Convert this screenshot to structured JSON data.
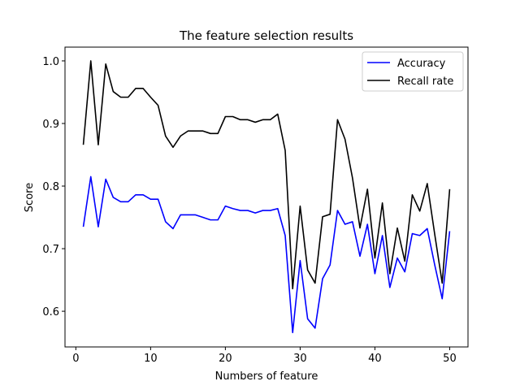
{
  "chart_data": {
    "type": "line",
    "title": "The feature selection results",
    "xlabel": "Numbers of feature",
    "ylabel": "Score",
    "xlim": [
      -1.45,
      52.45
    ],
    "ylim": [
      0.543,
      1.022
    ],
    "xticks": [
      0,
      10,
      20,
      30,
      40,
      50
    ],
    "yticks": [
      0.6,
      0.7,
      0.8,
      0.9,
      1.0
    ],
    "xtick_labels": [
      "0",
      "10",
      "20",
      "30",
      "40",
      "50"
    ],
    "ytick_labels": [
      "0.6",
      "0.7",
      "0.8",
      "0.9",
      "1.0"
    ],
    "grid": false,
    "legend_position": "top-right",
    "x": [
      1,
      2,
      3,
      4,
      5,
      6,
      7,
      8,
      9,
      10,
      11,
      12,
      13,
      14,
      15,
      16,
      17,
      18,
      19,
      20,
      21,
      22,
      23,
      24,
      25,
      26,
      27,
      28,
      29,
      30,
      31,
      32,
      33,
      34,
      35,
      36,
      37,
      38,
      39,
      40,
      41,
      42,
      43,
      44,
      45,
      46,
      47,
      48,
      49,
      50
    ],
    "series": [
      {
        "name": "Accuracy",
        "color": "#0000ff",
        "values": [
          0.735,
          0.815,
          0.735,
          0.811,
          0.782,
          0.775,
          0.775,
          0.786,
          0.786,
          0.779,
          0.779,
          0.743,
          0.732,
          0.754,
          0.754,
          0.754,
          0.75,
          0.746,
          0.746,
          0.768,
          0.764,
          0.761,
          0.761,
          0.757,
          0.761,
          0.761,
          0.764,
          0.721,
          0.566,
          0.681,
          0.588,
          0.573,
          0.652,
          0.674,
          0.761,
          0.739,
          0.743,
          0.688,
          0.739,
          0.66,
          0.721,
          0.638,
          0.685,
          0.663,
          0.724,
          0.721,
          0.732,
          0.674,
          0.62,
          0.728
        ]
      },
      {
        "name": "Recall rate",
        "color": "#000000",
        "values": [
          0.866,
          1.0,
          0.866,
          0.995,
          0.951,
          0.942,
          0.942,
          0.956,
          0.956,
          0.942,
          0.929,
          0.88,
          0.862,
          0.88,
          0.888,
          0.888,
          0.888,
          0.884,
          0.884,
          0.911,
          0.911,
          0.906,
          0.906,
          0.902,
          0.906,
          0.906,
          0.915,
          0.857,
          0.636,
          0.768,
          0.666,
          0.645,
          0.751,
          0.755,
          0.906,
          0.875,
          0.813,
          0.733,
          0.795,
          0.685,
          0.773,
          0.66,
          0.733,
          0.68,
          0.786,
          0.76,
          0.804,
          0.723,
          0.645,
          0.795
        ]
      }
    ]
  }
}
